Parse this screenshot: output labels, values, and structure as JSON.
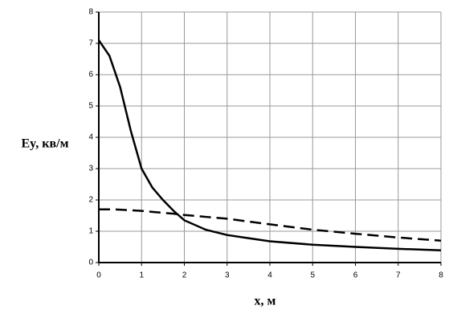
{
  "chart_data": {
    "type": "line",
    "x_label": "x, м",
    "y_label": "Ey, кв/м",
    "x": [
      0,
      0.25,
      0.5,
      0.75,
      1,
      1.25,
      1.5,
      1.75,
      2,
      2.5,
      3,
      3.5,
      4,
      5,
      6,
      7,
      8
    ],
    "series": [
      {
        "color": "#000000",
        "line_style": "solid",
        "values": [
          7.1,
          6.6,
          5.6,
          4.2,
          3.0,
          2.4,
          2.0,
          1.65,
          1.35,
          1.05,
          0.88,
          0.78,
          0.68,
          0.57,
          0.5,
          0.44,
          0.39
        ]
      },
      {
        "color": "#000000",
        "line_style": "dashed",
        "values": [
          1.7,
          1.7,
          1.69,
          1.67,
          1.65,
          1.62,
          1.59,
          1.56,
          1.52,
          1.46,
          1.4,
          1.31,
          1.22,
          1.05,
          0.92,
          0.8,
          0.7
        ]
      }
    ],
    "xlim": [
      0,
      8
    ],
    "xticks": [
      0,
      1,
      2,
      3,
      4,
      5,
      6,
      7,
      8
    ],
    "ylim": [
      0,
      8
    ],
    "yticks": [
      0,
      1,
      2,
      3,
      4,
      5,
      6,
      7,
      8
    ],
    "grid": true
  }
}
